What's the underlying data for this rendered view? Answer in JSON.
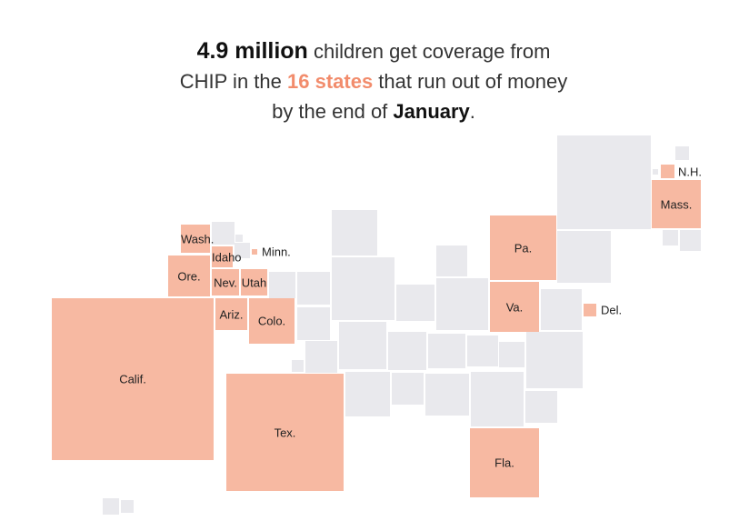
{
  "headline": {
    "part1": "4.9 million",
    "part2": " children get coverage from",
    "part3": "CHIP in the ",
    "part4": "16 states",
    "part5": " that run out of money",
    "part6": "by the end of ",
    "part7": "January",
    "part8": "."
  },
  "colors": {
    "highlight": "#f7b9a2",
    "other": "#e9e9ed",
    "accent_text": "#f28c6c"
  },
  "states": [
    {
      "label": "N.H.",
      "id": "nh"
    },
    {
      "label": "Mass.",
      "id": "mass"
    },
    {
      "label": "Wash.",
      "id": "wash"
    },
    {
      "label": "Idaho",
      "id": "idaho"
    },
    {
      "label": "Minn.",
      "id": "minn"
    },
    {
      "label": "Pa.",
      "id": "pa"
    },
    {
      "label": "Ore.",
      "id": "ore"
    },
    {
      "label": "Nev.",
      "id": "nev"
    },
    {
      "label": "Utah",
      "id": "utah"
    },
    {
      "label": "Va.",
      "id": "va"
    },
    {
      "label": "Del.",
      "id": "del"
    },
    {
      "label": "Ariz.",
      "id": "ariz"
    },
    {
      "label": "Colo.",
      "id": "colo"
    },
    {
      "label": "Calif.",
      "id": "calif"
    },
    {
      "label": "Tex.",
      "id": "tex"
    },
    {
      "label": "Fla.",
      "id": "fla"
    }
  ]
}
